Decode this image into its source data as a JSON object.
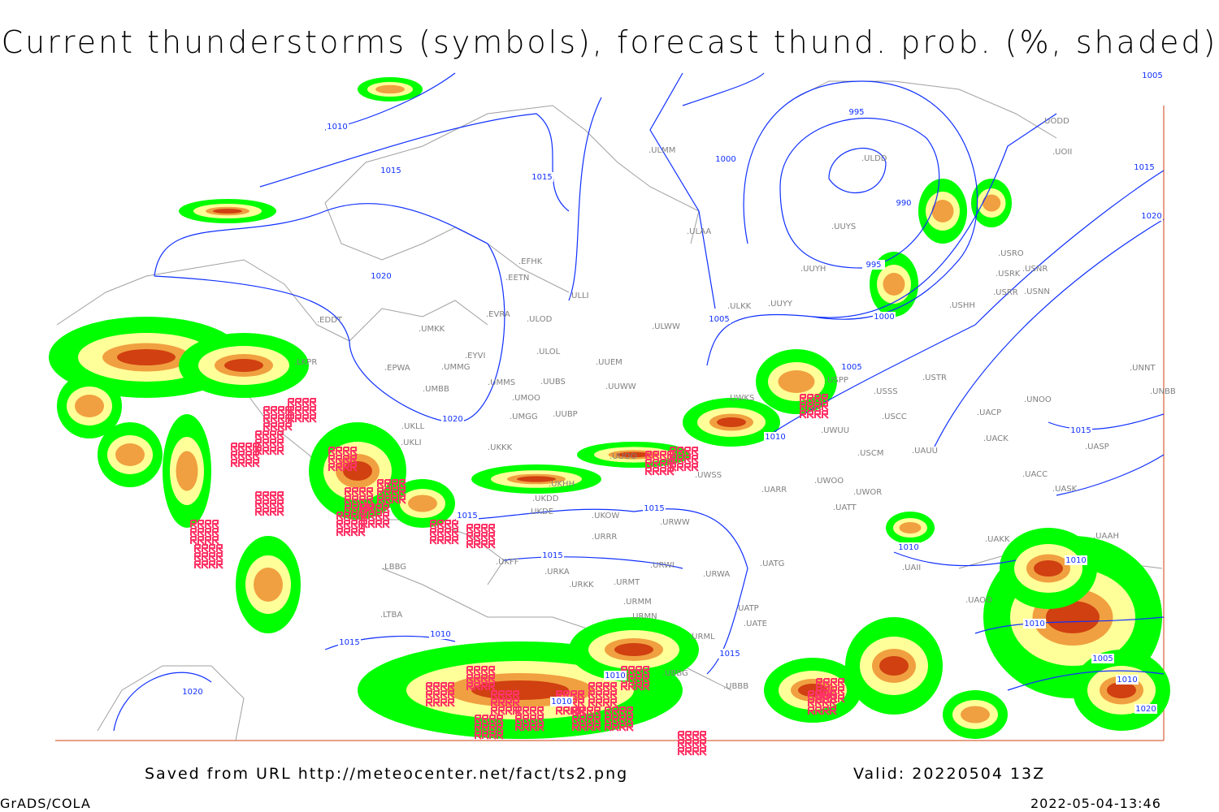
{
  "title": "Current thunderstorms (symbols), forecast thund. prob. (%, shaded)",
  "footer": {
    "source": "Saved from URL http://meteocenter.net/fact/ts2.png",
    "valid": "Valid: 20220504 13Z",
    "software": "GrADS/COLA",
    "timestamp": "2022-05-04-13:46"
  },
  "colors": {
    "prob_low": "#00ff00",
    "prob_mid": "#ffff99",
    "prob_high": "#f0a040",
    "prob_very_high": "#d04010",
    "thunderstorm_symbol": "#ff3366",
    "isobar": "#1030ff",
    "coastline": "#a0a0a0"
  },
  "stations": [
    "EFHK",
    "EETN",
    "ULLI",
    "EVRA",
    "ULOD",
    "EDDT",
    "UMKK",
    "EYVI",
    "ULOL",
    "EPWA",
    "UMMG",
    "UUEM",
    "UMMS",
    "UMOO",
    "UUBS",
    "UUWW",
    "UMBB",
    "UMGG",
    "UUBP",
    "UKLL",
    "UKLI",
    "UKKK",
    "LKPR",
    "ULAA",
    "ULMM",
    "UUYS",
    "UUYH",
    "ULKK",
    "UUYY",
    "ULWW",
    "UWKS",
    "UUOO",
    "UKDD",
    "UKHH",
    "UKDE",
    "UKOW",
    "URRR",
    "URWW",
    "UWSS",
    "URWI",
    "UKFF",
    "URKA",
    "URKK",
    "URMT",
    "URMM",
    "URMN",
    "URWA",
    "UATG",
    "UATE",
    "UATP",
    "URML",
    "UBBB",
    "UBBG",
    "LBBG",
    "LTBA",
    "UWOO",
    "UWOR",
    "UATT",
    "UARR",
    "USCM",
    "UAUU",
    "UWUU",
    "USCC",
    "USSS",
    "USTR",
    "USPP",
    "USHH",
    "USRK",
    "USRR",
    "USRO",
    "USNR",
    "USNN",
    "UOII",
    "UODD",
    "ULDD",
    "UACP",
    "UACK",
    "UACC",
    "UASK",
    "UNOO",
    "UNNT",
    "UNBB",
    "UASP",
    "UAAH",
    "UAKK",
    "UAII",
    "UAOO"
  ],
  "isobar_labels": [
    "1010",
    "1015",
    "1015",
    "1000",
    "995",
    "990",
    "995",
    "1000",
    "1005",
    "1005",
    "1020",
    "1020",
    "1015",
    "1020",
    "1005",
    "1010",
    "1015",
    "1015",
    "1015",
    "1010",
    "1015",
    "1020",
    "1015",
    "1010",
    "1010",
    "1010",
    "1010",
    "1010",
    "1005",
    "1010",
    "1020",
    "1015"
  ]
}
